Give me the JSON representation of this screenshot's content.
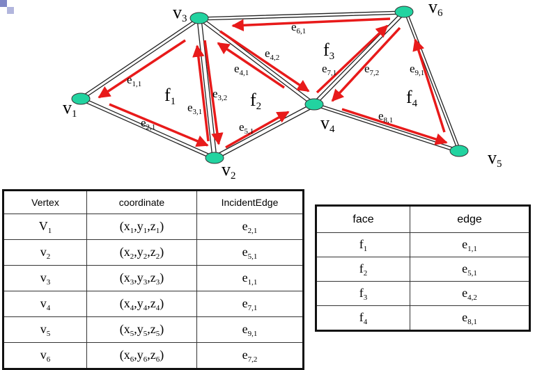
{
  "colors": {
    "vertex_fill": "#22d3a0",
    "arrow": "#e81a1a",
    "edge": "#222222",
    "corner": "#7f86c6"
  },
  "vertices": [
    {
      "id": "v1",
      "label": "v",
      "sub": "1"
    },
    {
      "id": "v2",
      "label": "v",
      "sub": "2"
    },
    {
      "id": "v3",
      "label": "v",
      "sub": "3"
    },
    {
      "id": "v4",
      "label": "v",
      "sub": "4"
    },
    {
      "id": "v5",
      "label": "v",
      "sub": "5"
    },
    {
      "id": "v6",
      "label": "v",
      "sub": "6"
    }
  ],
  "faces": [
    {
      "id": "f1",
      "label": "f",
      "sub": "1"
    },
    {
      "id": "f2",
      "label": "f",
      "sub": "2"
    },
    {
      "id": "f3",
      "label": "f",
      "sub": "3"
    },
    {
      "id": "f4",
      "label": "f",
      "sub": "4"
    }
  ],
  "half_edges": [
    {
      "id": "e11",
      "label": "e",
      "sub": "1,1"
    },
    {
      "id": "e21",
      "label": "e",
      "sub": "2,1"
    },
    {
      "id": "e31",
      "label": "e",
      "sub": "3,1"
    },
    {
      "id": "e32",
      "label": "e",
      "sub": "3,2"
    },
    {
      "id": "e41",
      "label": "e",
      "sub": "4,1"
    },
    {
      "id": "e42",
      "label": "e",
      "sub": "4,2"
    },
    {
      "id": "e51",
      "label": "e",
      "sub": "5,1"
    },
    {
      "id": "e61",
      "label": "e",
      "sub": "6,1"
    },
    {
      "id": "e71",
      "label": "e",
      "sub": "7,1"
    },
    {
      "id": "e72",
      "label": "e",
      "sub": "7,2"
    },
    {
      "id": "e81",
      "label": "e",
      "sub": "8,1"
    },
    {
      "id": "e91",
      "label": "e",
      "sub": "9,1"
    }
  ],
  "vertex_table": {
    "headers": [
      "Vertex",
      "coordinate",
      "IncidentEdge"
    ],
    "rows": [
      {
        "vertex": [
          "V",
          "1"
        ],
        "coord": [
          "x",
          "1",
          "y",
          "1",
          "z",
          "1"
        ],
        "edge": [
          "e",
          "2,1"
        ]
      },
      {
        "vertex": [
          "v",
          "2"
        ],
        "coord": [
          "x",
          "2",
          "y",
          "2",
          "z",
          "2"
        ],
        "edge": [
          "e",
          "5,1"
        ]
      },
      {
        "vertex": [
          "v",
          "3"
        ],
        "coord": [
          "x",
          "3",
          "y",
          "3",
          "z",
          "3"
        ],
        "edge": [
          "e",
          "1,1"
        ]
      },
      {
        "vertex": [
          "v",
          "4"
        ],
        "coord": [
          "x",
          "4",
          "y",
          "4",
          "z",
          "4"
        ],
        "edge": [
          "e",
          "7,1"
        ]
      },
      {
        "vertex": [
          "v",
          "5"
        ],
        "coord": [
          "x",
          "5",
          "y",
          "5",
          "z",
          "5"
        ],
        "edge": [
          "e",
          "9,1"
        ]
      },
      {
        "vertex": [
          "v",
          "6"
        ],
        "coord": [
          "x",
          "6",
          "y",
          "6",
          "z",
          "6"
        ],
        "edge": [
          "e",
          "7,2"
        ]
      }
    ]
  },
  "face_table": {
    "headers": [
      "face",
      "edge"
    ],
    "rows": [
      {
        "face": [
          "f",
          "1"
        ],
        "edge": [
          "e",
          "1,1"
        ]
      },
      {
        "face": [
          "f",
          "2"
        ],
        "edge": [
          "e",
          "5,1"
        ]
      },
      {
        "face": [
          "f",
          "3"
        ],
        "edge": [
          "e",
          "4,2"
        ]
      },
      {
        "face": [
          "f",
          "4"
        ],
        "edge": [
          "e",
          "8,1"
        ]
      }
    ]
  }
}
